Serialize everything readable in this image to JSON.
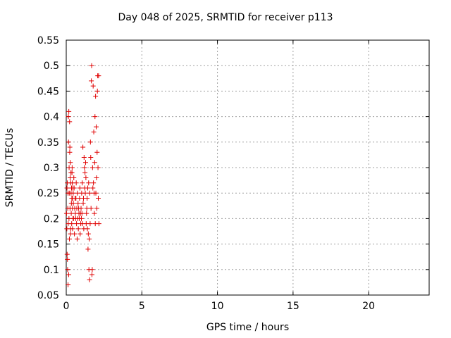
{
  "chart_data": {
    "type": "scatter",
    "title": "Day 048 of 2025, SRMTID for receiver p113",
    "xlabel": "GPS time / hours",
    "ylabel": "SRMTID / TECUs",
    "xlim": [
      0,
      24
    ],
    "ylim": [
      0.05,
      0.55
    ],
    "xticks": [
      0,
      5,
      10,
      15,
      20
    ],
    "xtick_labels": [
      "0",
      "5",
      "10",
      "15",
      "20"
    ],
    "yticks": [
      0.05,
      0.1,
      0.15,
      0.2,
      0.25,
      0.3,
      0.35,
      0.4,
      0.45,
      0.5,
      0.55
    ],
    "ytick_labels": [
      "0.05",
      "0.1",
      "0.15",
      "0.2",
      "0.25",
      "0.3",
      "0.35",
      "0.4",
      "0.45",
      "0.5",
      "0.55"
    ],
    "grid": true,
    "marker": "+",
    "color": "#e00000",
    "series": [
      {
        "x": [
          0.02,
          0.04,
          0.05,
          0.06,
          0.07,
          0.08,
          0.09,
          0.1,
          0.11,
          0.12,
          0.13,
          0.14,
          0.15,
          0.16,
          0.17,
          0.18,
          0.19,
          0.2,
          0.21,
          0.22,
          0.23,
          0.24,
          0.25,
          0.26,
          0.27,
          0.28,
          0.29,
          0.3,
          0.31,
          0.32,
          0.33,
          0.34,
          0.35,
          0.36,
          0.37,
          0.38,
          0.39,
          0.4,
          0.41,
          0.42,
          0.43,
          0.44,
          0.45,
          0.46,
          0.47,
          0.48,
          0.5,
          0.52,
          0.54,
          0.56,
          0.58,
          0.6,
          0.62,
          0.64,
          0.66,
          0.68,
          0.7,
          0.72,
          0.74,
          0.76,
          0.78,
          0.8,
          0.82,
          0.84,
          0.86,
          0.88,
          0.9,
          0.92,
          0.94,
          0.96,
          0.98,
          1.0,
          1.02,
          1.04,
          1.06,
          1.08,
          1.1,
          1.12,
          1.14,
          1.16,
          1.18,
          1.2,
          1.22,
          1.24,
          1.26,
          1.28,
          1.3,
          1.32,
          1.34,
          1.36,
          1.38,
          1.4,
          1.42,
          1.44,
          1.46,
          1.48,
          1.5,
          1.52,
          1.54,
          1.56,
          1.58,
          1.6,
          1.62,
          1.64,
          1.66,
          1.68,
          1.7,
          1.72,
          1.74,
          1.76,
          1.78,
          1.8,
          1.82,
          1.84,
          1.86,
          1.88,
          1.9,
          1.92,
          1.94,
          1.96,
          1.98,
          2.0,
          2.02,
          2.04,
          2.06,
          2.08,
          2.1,
          2.12,
          2.14,
          2.16
        ],
        "y": [
          0.21,
          0.18,
          0.26,
          0.13,
          0.27,
          0.12,
          0.1,
          0.22,
          0.25,
          0.07,
          0.19,
          0.4,
          0.35,
          0.09,
          0.41,
          0.2,
          0.3,
          0.25,
          0.16,
          0.39,
          0.33,
          0.34,
          0.22,
          0.28,
          0.31,
          0.17,
          0.18,
          0.27,
          0.29,
          0.25,
          0.21,
          0.23,
          0.26,
          0.19,
          0.24,
          0.29,
          0.3,
          0.27,
          0.22,
          0.18,
          0.24,
          0.26,
          0.2,
          0.25,
          0.23,
          0.2,
          0.28,
          0.26,
          0.17,
          0.22,
          0.24,
          0.21,
          0.2,
          0.24,
          0.27,
          0.19,
          0.22,
          0.16,
          0.25,
          0.2,
          0.23,
          0.18,
          0.22,
          0.21,
          0.2,
          0.24,
          0.26,
          0.17,
          0.21,
          0.19,
          0.22,
          0.2,
          0.25,
          0.21,
          0.27,
          0.19,
          0.34,
          0.23,
          0.24,
          0.18,
          0.32,
          0.3,
          0.26,
          0.29,
          0.25,
          0.31,
          0.28,
          0.19,
          0.21,
          0.22,
          0.24,
          0.18,
          0.26,
          0.14,
          0.17,
          0.27,
          0.1,
          0.16,
          0.08,
          0.25,
          0.19,
          0.35,
          0.32,
          0.22,
          0.47,
          0.5,
          0.09,
          0.1,
          0.3,
          0.26,
          0.46,
          0.27,
          0.37,
          0.25,
          0.21,
          0.31,
          0.4,
          0.19,
          0.44,
          0.25,
          0.38,
          0.28,
          0.22,
          0.33,
          0.45,
          0.48,
          0.3,
          0.24,
          0.48,
          0.19
        ]
      }
    ]
  }
}
